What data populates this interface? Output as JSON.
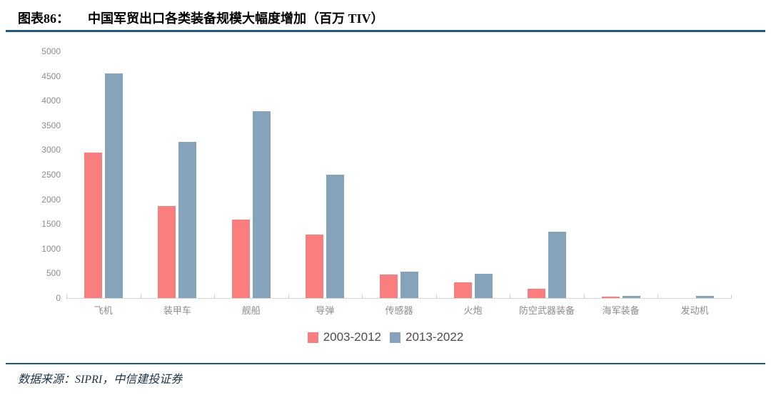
{
  "header": {
    "figure_label": "图表86：",
    "title": "中国军贸出口各类装备规模大幅度增加（百万 TIV）"
  },
  "footer": {
    "source": "数据来源：SIPRI，中信建投证券"
  },
  "colors": {
    "series_1": "#FB7E7E",
    "series_2": "#85A4BB",
    "rule": "#1E5A89",
    "axis_text": "#8C8C8C",
    "axis_line": "#D6D6D6",
    "legend_text": "#4D4D4D",
    "footer_text": "#1F3247"
  },
  "chart_data": {
    "type": "bar",
    "title": "中国军贸出口各类装备规模大幅度增加（百万 TIV）",
    "categories": [
      "飞机",
      "装甲车",
      "舰船",
      "导弹",
      "传感器",
      "火炮",
      "防空武器装备",
      "海军装备",
      "发动机"
    ],
    "series": [
      {
        "name": "2003-2012",
        "color": "#FB7E7E",
        "values": [
          2950,
          1870,
          1590,
          1280,
          480,
          320,
          190,
          30,
          0
        ]
      },
      {
        "name": "2013-2022",
        "color": "#85A4BB",
        "values": [
          4550,
          3160,
          3780,
          2500,
          540,
          490,
          1350,
          45,
          40
        ]
      }
    ],
    "xlabel": "",
    "ylabel": "",
    "ylim": [
      0,
      5000
    ],
    "ytick_step": 500,
    "grid": false,
    "legend_position": "bottom"
  }
}
